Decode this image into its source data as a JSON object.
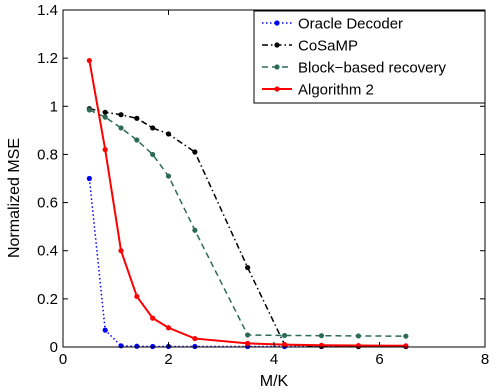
{
  "chart_data": {
    "type": "line",
    "xlabel": "M/K",
    "ylabel": "Normalized MSE",
    "xlim": [
      0,
      8
    ],
    "ylim": [
      0,
      1.4
    ],
    "x_ticks": [
      "0",
      "2",
      "4",
      "6",
      "8"
    ],
    "y_ticks": [
      "0",
      "0.2",
      "0.4",
      "0.6",
      "0.8",
      "1",
      "1.2",
      "1.4"
    ],
    "grid": false,
    "legend_position": "top-right",
    "series": [
      {
        "name": "Oracle Decoder",
        "color": "#0000ff",
        "line_style": "dotted",
        "marker": "dot",
        "points": [
          [
            0.5,
            0.7
          ],
          [
            0.8,
            0.07
          ],
          [
            1.1,
            0.005
          ],
          [
            1.4,
            0.003
          ],
          [
            1.7,
            0.002
          ],
          [
            2.0,
            0.002
          ],
          [
            2.5,
            0.002
          ],
          [
            3.5,
            0.002
          ],
          [
            4.2,
            0.002
          ],
          [
            4.9,
            0.002
          ],
          [
            5.6,
            0.002
          ],
          [
            6.5,
            0.002
          ]
        ]
      },
      {
        "name": "CoSaMP",
        "color": "#000000",
        "line_style": "dashdot",
        "marker": "dot",
        "points": [
          [
            0.5,
            0.99
          ],
          [
            0.8,
            0.975
          ],
          [
            1.1,
            0.965
          ],
          [
            1.4,
            0.95
          ],
          [
            1.7,
            0.91
          ],
          [
            2.0,
            0.885
          ],
          [
            2.5,
            0.81
          ],
          [
            3.5,
            0.33
          ],
          [
            4.2,
            0.01
          ],
          [
            4.9,
            0.003
          ],
          [
            5.6,
            0.002
          ],
          [
            6.5,
            0.002
          ]
        ]
      },
      {
        "name": "Block−based recovery",
        "color": "#2e6b57",
        "line_style": "dashed",
        "marker": "dot",
        "points": [
          [
            0.5,
            0.985
          ],
          [
            0.8,
            0.955
          ],
          [
            1.1,
            0.91
          ],
          [
            1.4,
            0.86
          ],
          [
            1.7,
            0.8
          ],
          [
            2.0,
            0.71
          ],
          [
            2.5,
            0.485
          ],
          [
            3.5,
            0.05
          ],
          [
            4.2,
            0.048
          ],
          [
            4.9,
            0.047
          ],
          [
            5.6,
            0.046
          ],
          [
            6.5,
            0.045
          ]
        ]
      },
      {
        "name": "Algorithm 2",
        "color": "#ff0000",
        "line_style": "solid",
        "marker": "dot",
        "points": [
          [
            0.5,
            1.19
          ],
          [
            0.8,
            0.82
          ],
          [
            1.1,
            0.4
          ],
          [
            1.4,
            0.21
          ],
          [
            1.7,
            0.12
          ],
          [
            2.0,
            0.08
          ],
          [
            2.5,
            0.035
          ],
          [
            3.5,
            0.015
          ],
          [
            4.2,
            0.01
          ],
          [
            4.9,
            0.007
          ],
          [
            5.6,
            0.006
          ],
          [
            6.5,
            0.005
          ]
        ]
      }
    ]
  }
}
